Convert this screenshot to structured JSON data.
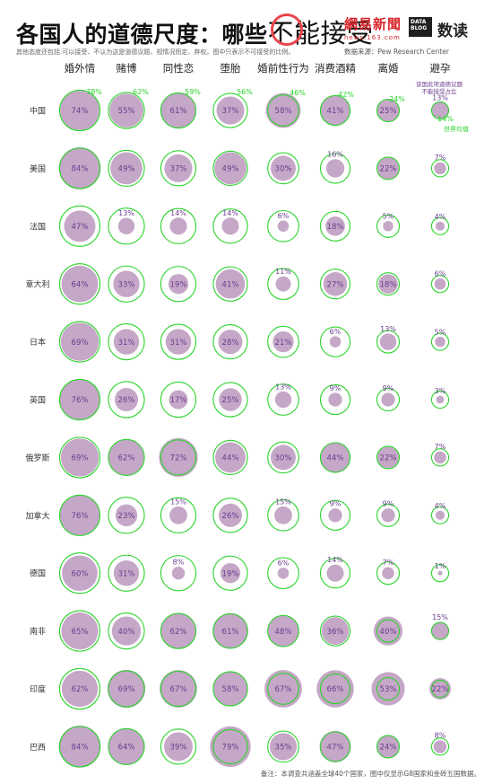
{
  "header": {
    "title_part1": "各国人的道德尺度：哪些",
    "title_part2": "不能接受",
    "subtitle": "其他态度还包括:可以接受、不认为这是道德议题、视情况而定、弃权。图中只表示不可接受的比例。",
    "brand_name": "網易新聞",
    "brand_url": "news.163.com",
    "brand2_box": "DATA BLOG",
    "brand2_text": "数读",
    "source": "数据来源：Pew Research Center"
  },
  "legend": {
    "purple_note": "该国此项道德议题不能接受占比",
    "green_note": "世界均值"
  },
  "footnote": "备注：本调查共涵盖全球40个国家，图中仅显示G8国家和金砖五国数据。",
  "colors": {
    "country_fill": "#c5a7c7",
    "world_ring": "#2bd42b",
    "value_text": "#6a3d8f",
    "label_text": "#333333"
  },
  "chart_data": {
    "type": "bubble-matrix",
    "title": "各国人的道德尺度：哪些不能接受",
    "unit": "%",
    "issues": [
      "婚外情",
      "赌博",
      "同性恋",
      "堕胎",
      "婚前性行为",
      "消费酒精",
      "离婚",
      "避孕"
    ],
    "world_average": [
      78,
      62,
      59,
      56,
      46,
      42,
      24,
      14
    ],
    "countries": [
      "中国",
      "美国",
      "法国",
      "意大利",
      "日本",
      "英国",
      "俄罗斯",
      "加拿大",
      "德国",
      "南非",
      "印度",
      "巴西"
    ],
    "values": [
      [
        74,
        55,
        61,
        37,
        58,
        41,
        25,
        13
      ],
      [
        84,
        49,
        37,
        49,
        30,
        16,
        22,
        7
      ],
      [
        47,
        13,
        14,
        14,
        6,
        18,
        5,
        4
      ],
      [
        64,
        33,
        19,
        41,
        11,
        27,
        18,
        6
      ],
      [
        69,
        31,
        31,
        28,
        21,
        6,
        13,
        5
      ],
      [
        76,
        26,
        17,
        25,
        13,
        9,
        9,
        3
      ],
      [
        69,
        62,
        72,
        44,
        30,
        44,
        22,
        7
      ],
      [
        76,
        23,
        15,
        26,
        15,
        9,
        9,
        4
      ],
      [
        60,
        31,
        8,
        19,
        6,
        14,
        7,
        1
      ],
      [
        65,
        40,
        62,
        61,
        48,
        36,
        40,
        15
      ],
      [
        62,
        69,
        67,
        58,
        67,
        66,
        53,
        22
      ],
      [
        84,
        64,
        39,
        79,
        35,
        47,
        24,
        8
      ]
    ]
  }
}
